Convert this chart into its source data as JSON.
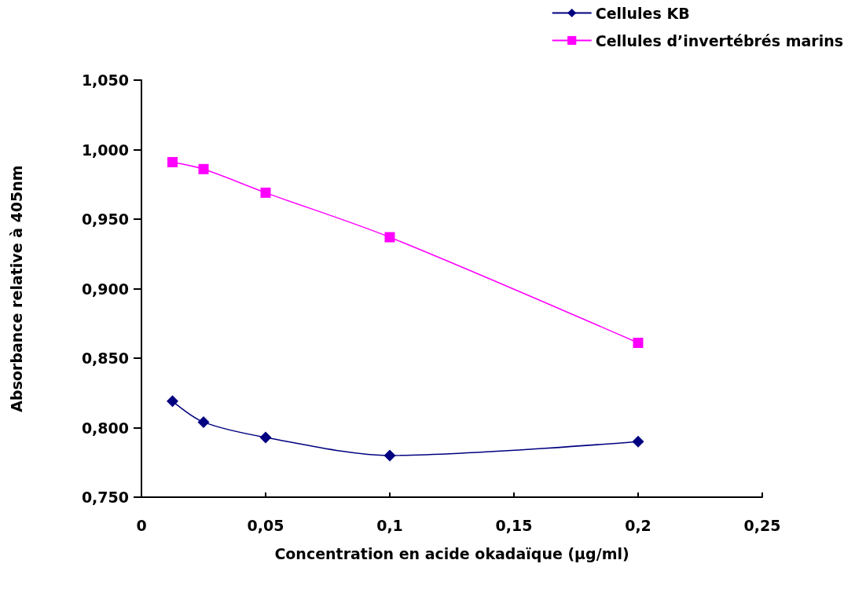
{
  "chart_data": {
    "type": "line",
    "xlabel": "Concentration en acide okadaïque (µg/ml)",
    "ylabel": "Absorbance relative à 405nm",
    "xlim": [
      0,
      0.25
    ],
    "xticks": [
      0,
      {
        "value": 0.05,
        "label": "0,05"
      },
      {
        "value": 0.1,
        "label": "0,1"
      },
      {
        "value": 0.15,
        "label": "0,15"
      },
      {
        "value": 0.2,
        "label": "0,2"
      },
      {
        "value": 0.25,
        "label": "0,25"
      }
    ],
    "ylim": [
      0.75,
      1.05
    ],
    "yticks": [
      {
        "value": 0.75,
        "label": "0,750"
      },
      {
        "value": 0.8,
        "label": "0,800"
      },
      {
        "value": 0.85,
        "label": "0,850"
      },
      {
        "value": 0.9,
        "label": "0,900"
      },
      {
        "value": 0.95,
        "label": "0,950"
      },
      {
        "value": 1.0,
        "label": "1,000"
      },
      {
        "value": 1.05,
        "label": "1,050"
      }
    ],
    "x": [
      0.0125,
      0.025,
      0.05,
      0.1,
      0.2
    ],
    "series": [
      {
        "name": "Cellules KB",
        "color": "#000080",
        "marker": "diamond",
        "values": [
          0.819,
          0.804,
          0.793,
          0.78,
          0.79
        ]
      },
      {
        "name": "Cellules d’invertébrés marins",
        "color": "#ff00ff",
        "marker": "square",
        "values": [
          0.991,
          0.986,
          0.969,
          0.937,
          0.861
        ]
      }
    ],
    "grid": false,
    "legend": "top right"
  }
}
